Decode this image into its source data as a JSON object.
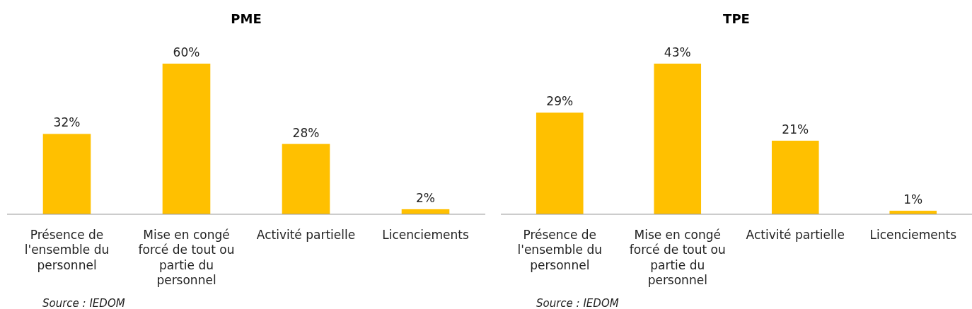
{
  "chart_data": [
    {
      "type": "bar",
      "title": "PME",
      "categories": [
        "Présence de l'ensemble du personnel",
        "Mise en congé forcé de tout ou partie du personnel",
        "Activité partielle",
        "Licenciements"
      ],
      "values": [
        32,
        60,
        28,
        2
      ],
      "value_labels": [
        "32%",
        "60%",
        "28%",
        "2%"
      ],
      "color": "#ffc000",
      "annotations": [
        "Source : IEDOM"
      ]
    },
    {
      "type": "bar",
      "title": "TPE",
      "categories": [
        "Présence de l'ensemble du personnel",
        "Mise en congé forcé de tout ou partie du personnel",
        "Activité partielle",
        "Licenciements"
      ],
      "values": [
        29,
        43,
        21,
        1
      ],
      "value_labels": [
        "29%",
        "43%",
        "21%",
        "1%"
      ],
      "color": "#ffc000",
      "annotations": [
        "Source : IEDOM"
      ]
    }
  ]
}
